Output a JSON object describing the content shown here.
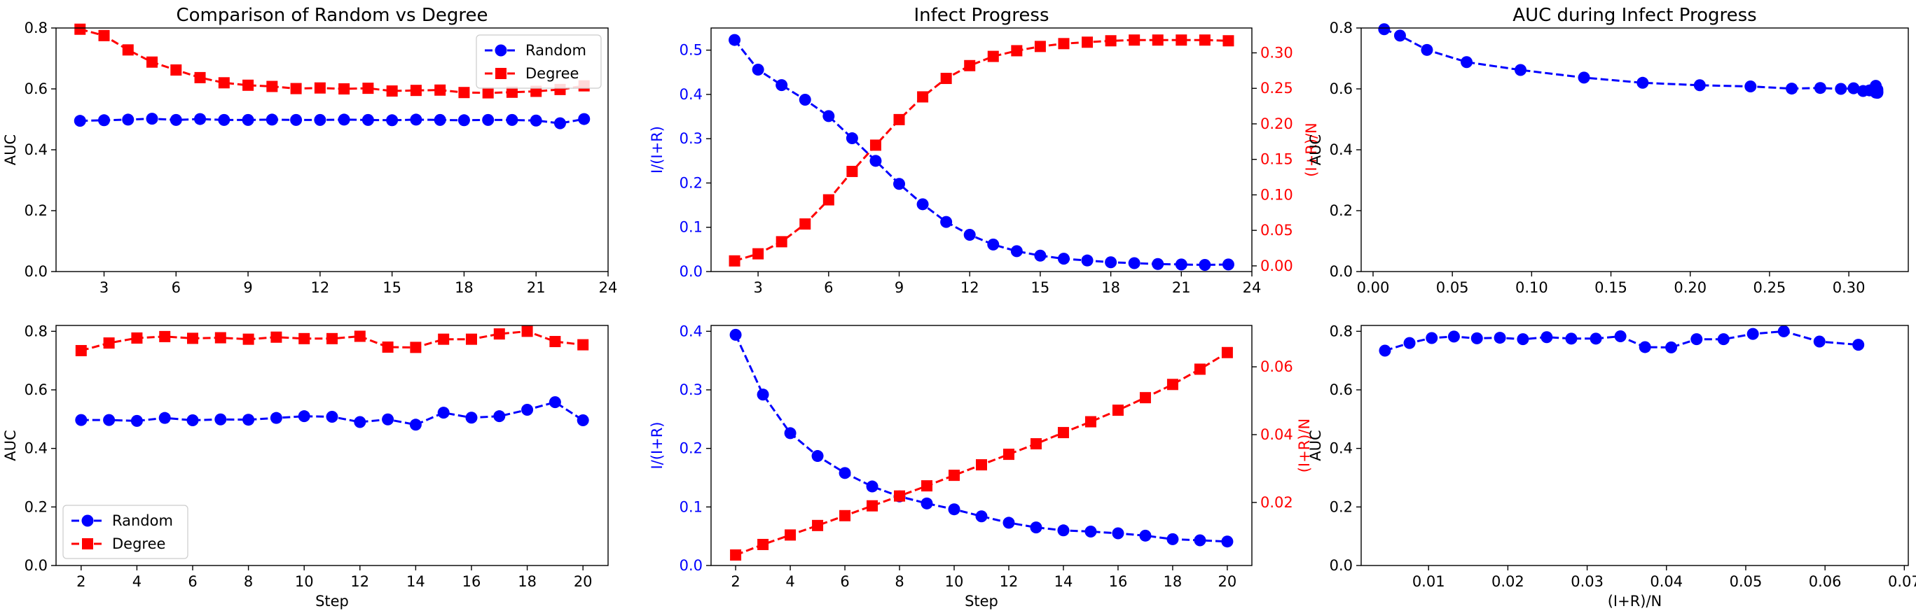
{
  "chart_data": [
    {
      "type": "line",
      "title": "Comparison of Random vs Degree",
      "xlabel": "",
      "ylabel": "AUC",
      "xlim": [
        1.0,
        24.0
      ],
      "ylim": [
        0.0,
        0.8
      ],
      "xticks": [
        "3",
        "6",
        "9",
        "12",
        "15",
        "18",
        "21",
        "24"
      ],
      "yticks": [
        "0.0",
        "0.2",
        "0.4",
        "0.6",
        "0.8"
      ],
      "legend": "top-right",
      "x": [
        2,
        3,
        4,
        5,
        6,
        7,
        8,
        9,
        10,
        11,
        12,
        13,
        14,
        15,
        16,
        17,
        18,
        19,
        20,
        21,
        22,
        23
      ],
      "series": [
        {
          "name": "Random",
          "color": "#0000ff",
          "marker": "circle",
          "values": [
            0.495,
            0.497,
            0.499,
            0.502,
            0.498,
            0.501,
            0.498,
            0.498,
            0.499,
            0.498,
            0.498,
            0.499,
            0.498,
            0.497,
            0.499,
            0.498,
            0.497,
            0.498,
            0.498,
            0.496,
            0.487,
            0.501
          ]
        },
        {
          "name": "Degree",
          "color": "#ff0000",
          "marker": "square",
          "values": [
            0.796,
            0.775,
            0.728,
            0.688,
            0.662,
            0.637,
            0.62,
            0.612,
            0.608,
            0.601,
            0.603,
            0.6,
            0.602,
            0.593,
            0.595,
            0.596,
            0.588,
            0.587,
            0.589,
            0.592,
            0.598,
            0.61
          ]
        }
      ]
    },
    {
      "type": "line",
      "title": "Infect Progress",
      "xlabel": "",
      "ylabel": "I/(I+R)",
      "ylabel_right": "(I+R)/N",
      "xlim": [
        1.0,
        24.0
      ],
      "ylim": [
        0.0,
        0.55
      ],
      "ylim_right": [
        -0.008,
        0.335
      ],
      "xticks": [
        "3",
        "6",
        "9",
        "12",
        "15",
        "18",
        "21",
        "24"
      ],
      "yticks": [
        "0.0",
        "0.1",
        "0.2",
        "0.3",
        "0.4",
        "0.5"
      ],
      "yticks_right": [
        "0.00",
        "0.05",
        "0.10",
        "0.15",
        "0.20",
        "0.25",
        "0.30"
      ],
      "x": [
        2,
        3,
        4,
        5,
        6,
        7,
        8,
        9,
        10,
        11,
        12,
        13,
        14,
        15,
        16,
        17,
        18,
        19,
        20,
        21,
        22,
        23
      ],
      "series": [
        {
          "name": "I/(I+R)",
          "axis": "left",
          "color": "#0000ff",
          "marker": "circle",
          "values": [
            0.523,
            0.456,
            0.421,
            0.388,
            0.351,
            0.301,
            0.25,
            0.198,
            0.152,
            0.112,
            0.083,
            0.061,
            0.046,
            0.036,
            0.029,
            0.025,
            0.021,
            0.019,
            0.017,
            0.016,
            0.015,
            0.016
          ]
        },
        {
          "name": "(I+R)/N",
          "axis": "right",
          "color": "#ff0000",
          "marker": "square",
          "values": [
            0.007,
            0.017,
            0.034,
            0.059,
            0.093,
            0.133,
            0.17,
            0.206,
            0.238,
            0.264,
            0.282,
            0.295,
            0.303,
            0.309,
            0.313,
            0.315,
            0.317,
            0.318,
            0.318,
            0.318,
            0.318,
            0.317
          ]
        }
      ]
    },
    {
      "type": "scatter",
      "title": "AUC during Infect Progress",
      "xlabel": "",
      "ylabel": "AUC",
      "xlim": [
        -0.0075,
        0.3375
      ],
      "ylim": [
        0.0,
        0.8
      ],
      "xticks": [
        "0.00",
        "0.05",
        "0.10",
        "0.15",
        "0.20",
        "0.25",
        "0.30"
      ],
      "yticks": [
        "0.0",
        "0.2",
        "0.4",
        "0.6",
        "0.8"
      ],
      "series": [
        {
          "name": "",
          "color": "#0000ff",
          "marker": "circle",
          "x": [
            0.007,
            0.017,
            0.034,
            0.059,
            0.093,
            0.133,
            0.17,
            0.206,
            0.238,
            0.264,
            0.282,
            0.295,
            0.303,
            0.309,
            0.313,
            0.315,
            0.317,
            0.318,
            0.318,
            0.318,
            0.318,
            0.317
          ],
          "values": [
            0.796,
            0.775,
            0.728,
            0.688,
            0.662,
            0.637,
            0.62,
            0.612,
            0.608,
            0.601,
            0.603,
            0.6,
            0.602,
            0.593,
            0.595,
            0.596,
            0.588,
            0.587,
            0.589,
            0.592,
            0.598,
            0.61
          ]
        }
      ]
    },
    {
      "type": "line",
      "title": "",
      "xlabel": "Step",
      "ylabel": "AUC",
      "xlim": [
        1.1,
        20.9
      ],
      "ylim": [
        0.0,
        0.82
      ],
      "xticks": [
        "2",
        "4",
        "6",
        "8",
        "10",
        "12",
        "14",
        "16",
        "18",
        "20"
      ],
      "yticks": [
        "0.0",
        "0.2",
        "0.4",
        "0.6",
        "0.8"
      ],
      "legend": "bottom-left",
      "x": [
        2,
        3,
        4,
        5,
        6,
        7,
        8,
        9,
        10,
        11,
        12,
        13,
        14,
        15,
        16,
        17,
        18,
        19,
        20
      ],
      "series": [
        {
          "name": "Random",
          "color": "#0000ff",
          "marker": "circle",
          "values": [
            0.497,
            0.497,
            0.494,
            0.504,
            0.496,
            0.499,
            0.498,
            0.504,
            0.51,
            0.508,
            0.49,
            0.499,
            0.481,
            0.522,
            0.505,
            0.51,
            0.532,
            0.558,
            0.496
          ]
        },
        {
          "name": "Degree",
          "color": "#ff0000",
          "marker": "square",
          "values": [
            0.734,
            0.76,
            0.777,
            0.782,
            0.776,
            0.778,
            0.773,
            0.78,
            0.775,
            0.775,
            0.783,
            0.746,
            0.745,
            0.773,
            0.773,
            0.791,
            0.8,
            0.765,
            0.754
          ]
        }
      ]
    },
    {
      "type": "line",
      "title": "",
      "xlabel": "Step",
      "ylabel": "I/(I+R)",
      "ylabel_right": "(I+R)/N",
      "xlim": [
        1.1,
        20.9
      ],
      "ylim": [
        0.0,
        0.41
      ],
      "ylim_right": [
        0.0014,
        0.0722
      ],
      "xticks": [
        "2",
        "4",
        "6",
        "8",
        "10",
        "12",
        "14",
        "16",
        "18",
        "20"
      ],
      "yticks": [
        "0.0",
        "0.1",
        "0.2",
        "0.3",
        "0.4"
      ],
      "yticks_right": [
        "0.02",
        "0.04",
        "0.06"
      ],
      "x": [
        2,
        3,
        4,
        5,
        6,
        7,
        8,
        9,
        10,
        11,
        12,
        13,
        14,
        15,
        16,
        17,
        18,
        19,
        20
      ],
      "series": [
        {
          "name": "I/(I+R)",
          "axis": "left",
          "color": "#0000ff",
          "marker": "circle",
          "values": [
            0.394,
            0.292,
            0.226,
            0.187,
            0.158,
            0.135,
            0.118,
            0.106,
            0.096,
            0.084,
            0.073,
            0.065,
            0.06,
            0.058,
            0.055,
            0.051,
            0.045,
            0.043,
            0.041
          ]
        },
        {
          "name": "(I+R)/N",
          "axis": "right",
          "color": "#ff0000",
          "marker": "square",
          "values": [
            0.0045,
            0.0076,
            0.0104,
            0.0132,
            0.0161,
            0.019,
            0.0219,
            0.0249,
            0.028,
            0.0311,
            0.0342,
            0.0373,
            0.0406,
            0.0438,
            0.0472,
            0.0509,
            0.0548,
            0.0593,
            0.0642
          ]
        }
      ]
    },
    {
      "type": "scatter",
      "title": "",
      "xlabel": "(I+R)/N",
      "ylabel": "AUC",
      "xlim": [
        0.0015,
        0.0705
      ],
      "ylim": [
        0.0,
        0.82
      ],
      "xticks": [
        "0.01",
        "0.02",
        "0.03",
        "0.04",
        "0.05",
        "0.06",
        "0.07"
      ],
      "yticks": [
        "0.0",
        "0.2",
        "0.4",
        "0.6",
        "0.8"
      ],
      "series": [
        {
          "name": "",
          "color": "#0000ff",
          "marker": "circle",
          "x": [
            0.0045,
            0.0076,
            0.0104,
            0.0132,
            0.0161,
            0.019,
            0.0219,
            0.0249,
            0.028,
            0.0311,
            0.0342,
            0.0373,
            0.0406,
            0.0438,
            0.0472,
            0.0509,
            0.0548,
            0.0593,
            0.0642
          ],
          "values": [
            0.734,
            0.76,
            0.777,
            0.782,
            0.776,
            0.778,
            0.773,
            0.78,
            0.775,
            0.775,
            0.783,
            0.746,
            0.745,
            0.773,
            0.773,
            0.791,
            0.8,
            0.765,
            0.754
          ]
        }
      ]
    }
  ]
}
